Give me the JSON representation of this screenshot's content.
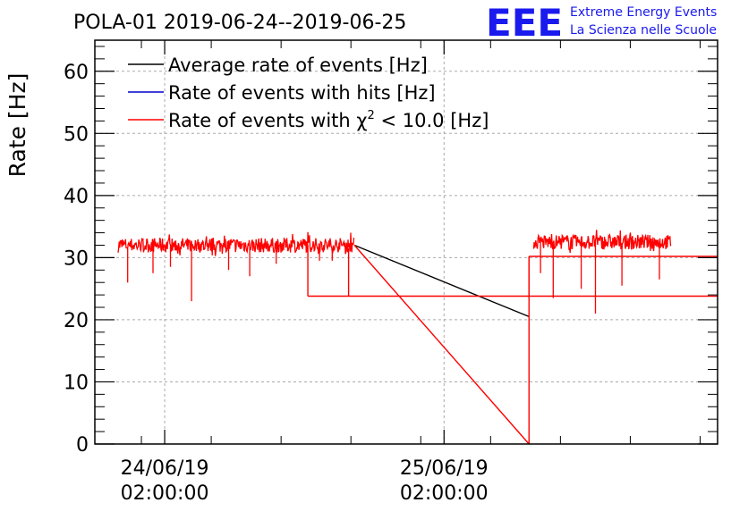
{
  "chart_data": {
    "type": "line",
    "title": "POLA-01 2019-06-24--2019-06-25",
    "ylabel": "Rate [Hz]",
    "xlabel": "",
    "ylim": [
      0,
      65
    ],
    "y_ticks": [
      0,
      10,
      20,
      30,
      40,
      50,
      60
    ],
    "x_ticks": [
      {
        "date": "24/06/19",
        "time": "02:00:00",
        "hours": 2
      },
      {
        "date": "25/06/19",
        "time": "02:00:00",
        "hours": 26
      }
    ],
    "x_range_hours": [
      -4,
      49.5
    ],
    "grid": true,
    "legend_position": "top-left",
    "legend": [
      {
        "name": "Average rate of events [Hz]",
        "color": "#000000"
      },
      {
        "name": "Rate of events with hits [Hz]",
        "color": "#0000cc"
      },
      {
        "name_prefix": "Rate of events with ",
        "chi": "χ",
        "sup": "2",
        "name_suffix": " < 10.0 [Hz]",
        "color": "#ff0000"
      }
    ],
    "series": [
      {
        "name": "Average rate of events [Hz]",
        "color": "#000000",
        "points": [
          [
            18.3,
            32.0
          ],
          [
            33.3,
            20.5
          ]
        ]
      },
      {
        "name": "Rate of events with χ2 < 10.0 [Hz]",
        "color": "#ff0000",
        "noisy_segments": [
          {
            "x_start": -2.0,
            "x_end": 18.3,
            "mean": 32.0,
            "spread": 1.2,
            "dips": [
              [
                -1.2,
                26.0
              ],
              [
                1.0,
                27.5
              ],
              [
                2.5,
                28.5
              ],
              [
                4.3,
                23.0
              ],
              [
                7.5,
                28.0
              ],
              [
                9.3,
                27.0
              ],
              [
                11.6,
                29.0
              ],
              [
                15.3,
                29.5
              ],
              [
                16.4,
                29.5
              ]
            ]
          },
          {
            "x_start": 33.7,
            "x_end": 45.5,
            "mean": 32.5,
            "spread": 1.2,
            "dips": [
              [
                34.3,
                27.5
              ],
              [
                35.4,
                23.5
              ],
              [
                37.8,
                25.0
              ],
              [
                39.0,
                21.0
              ],
              [
                41.3,
                25.5
              ],
              [
                44.5,
                26.5
              ]
            ]
          }
        ],
        "points": [
          [
            14.3,
            32.0
          ],
          [
            14.3,
            23.8
          ],
          [
            49.5,
            23.8
          ],
          [
            17.8,
            31.5
          ],
          [
            17.8,
            23.8
          ],
          [
            18.3,
            32.0
          ],
          [
            33.3,
            0
          ],
          [
            33.3,
            30.2
          ],
          [
            49.5,
            30.2
          ],
          [
            33.3,
            24.0
          ]
        ]
      }
    ]
  },
  "brand": {
    "logo_text": "EEE",
    "line1": "Extreme Energy Events",
    "line2": "La Scienza nelle Scuole",
    "color": "#1a1aee"
  }
}
